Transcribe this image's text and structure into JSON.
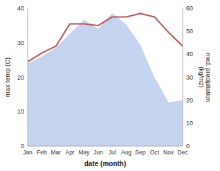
{
  "chart_data": {
    "type": "line",
    "categories": [
      "Jan",
      "Feb",
      "Mar",
      "Apr",
      "May",
      "Jun",
      "Jul",
      "Aug",
      "Sep",
      "Oct",
      "Nov",
      "Dec"
    ],
    "xlabel": "date (month)",
    "ylabel": "max temp (C)",
    "y2label": "med. precipitation\n(kg/m2)",
    "ylim": [
      0,
      40
    ],
    "yticks": [
      0,
      10,
      20,
      30,
      40
    ],
    "y2lim": [
      0,
      60
    ],
    "y2ticks": [
      0,
      10,
      20,
      30,
      40,
      50,
      60
    ],
    "grid": false,
    "series": [
      {
        "type": "line",
        "color": "#c0504d",
        "values": [
          24.5,
          27.0,
          29.0,
          35.5,
          35.5,
          35.0,
          37.5,
          37.5,
          38.5,
          37.5,
          33.0,
          29.0
        ]
      },
      {
        "type": "area",
        "color": "#c5d4ee",
        "axis": "y2",
        "values": [
          36.0,
          39.0,
          43.0,
          49.0,
          55.0,
          51.0,
          58.0,
          53.0,
          44.0,
          30.0,
          19.0,
          20.0
        ]
      }
    ]
  }
}
